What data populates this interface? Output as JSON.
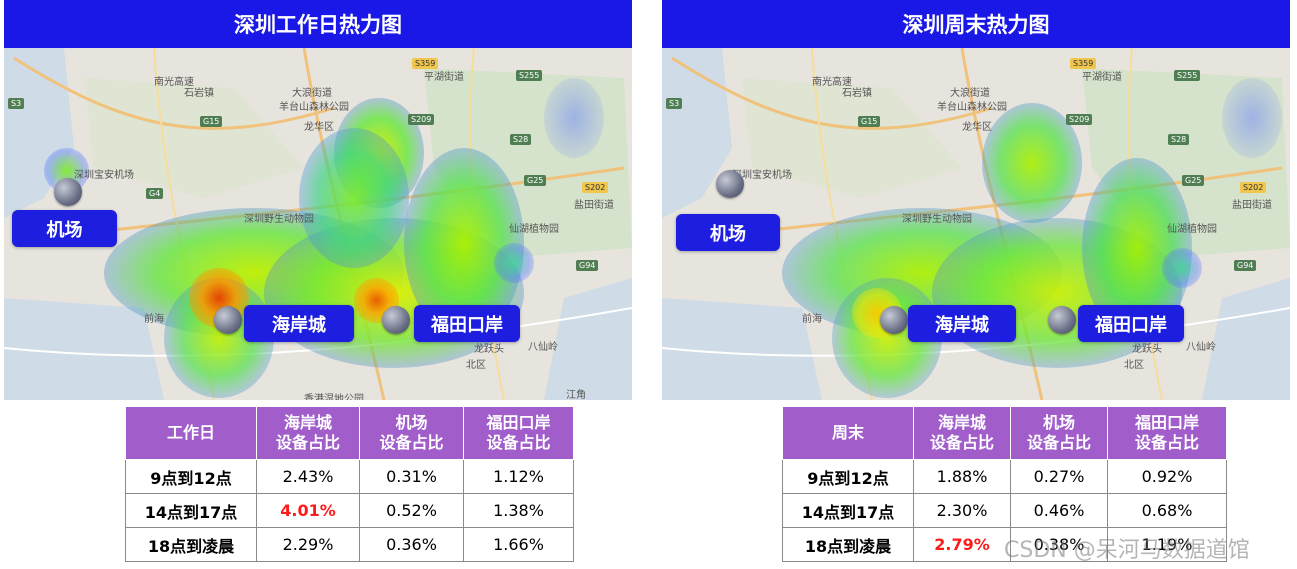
{
  "panels": [
    {
      "title": "深圳工作日热力图",
      "callouts": {
        "airport": "机场",
        "haian": "海岸城",
        "futian": "福田口岸"
      },
      "table": {
        "headers": [
          [
            "工作日"
          ],
          [
            "海岸城",
            "设备占比"
          ],
          [
            "机场",
            "设备占比"
          ],
          [
            "福田口岸",
            "设备占比"
          ]
        ],
        "rows": [
          {
            "label": "9点到12点",
            "values": [
              "2.43%",
              "0.31%",
              "1.12%"
            ]
          },
          {
            "label": "14点到17点",
            "values": [
              "4.01%",
              "0.52%",
              "1.38%"
            ]
          },
          {
            "label": "18点到凌晨",
            "values": [
              "2.29%",
              "0.36%",
              "1.66%"
            ]
          }
        ]
      }
    },
    {
      "title": "深圳周末热力图",
      "callouts": {
        "airport": "机场",
        "haian": "海岸城",
        "futian": "福田口岸"
      },
      "table": {
        "headers": [
          [
            "周末"
          ],
          [
            "海岸城",
            "设备占比"
          ],
          [
            "机场",
            "设备占比"
          ],
          [
            "福田口岸",
            "设备占比"
          ]
        ],
        "rows": [
          {
            "label": "9点到12点",
            "values": [
              "1.88%",
              "0.27%",
              "0.92%"
            ]
          },
          {
            "label": "14点到17点",
            "values": [
              "2.30%",
              "0.46%",
              "0.68%"
            ]
          },
          {
            "label": "18点到凌晨",
            "values": [
              "2.79%",
              "0.38%",
              "1.19%"
            ]
          }
        ]
      }
    }
  ],
  "map_labels": {
    "nanguang": "南光高速",
    "shiyan": "石岩镇",
    "dalang": "大浪街道",
    "yangtai": "羊台山森林公园",
    "longhua": "龙华区",
    "pinghu": "平湖街道",
    "airport": "深圳宝安机场",
    "wildlife": "深圳野生动物园",
    "botanic": "仙湖植物园",
    "yantian": "盐田街道",
    "qianhai": "前海",
    "longyue": "龙跃头",
    "beiqu": "北区",
    "baxian": "八仙岭",
    "hongkong": "香港湿地公园",
    "jiangjiao": "江角"
  },
  "highway_shields": {
    "s3": "S3",
    "g15": "G15",
    "g4": "G4",
    "g25": "G25",
    "s359": "S359",
    "s209": "S209",
    "s255": "S255",
    "s28": "S28",
    "s202": "S202",
    "g94": "G94"
  },
  "watermark": "CSDN @呆河马数据道馆",
  "colors": {
    "title_bar": "#1a18e6",
    "callout": "#1d1ee0",
    "table_header": "#a15ecb",
    "highlight": "#ff1a1a"
  }
}
